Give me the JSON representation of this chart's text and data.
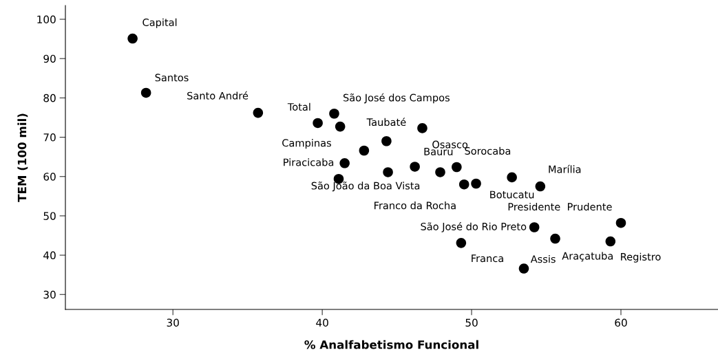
{
  "chart_data": {
    "type": "scatter",
    "xlabel": "% Analfabetismo Funcional",
    "ylabel": "TEM (100 mil)",
    "x": [
      27.3,
      28.2,
      35.7,
      39.7,
      40.8,
      41.2,
      42.8,
      44.3,
      46.7,
      41.5,
      41.1,
      44.4,
      46.2,
      47.9,
      49.0,
      49.5,
      50.3,
      52.7,
      54.6,
      60.0,
      54.2,
      55.6,
      59.3,
      49.3,
      53.5
    ],
    "values": [
      95.1,
      81.3,
      76.2,
      73.6,
      76.0,
      72.7,
      66.6,
      69.0,
      72.3,
      63.4,
      59.4,
      61.1,
      62.5,
      61.1,
      62.4,
      58.0,
      58.2,
      59.8,
      57.5,
      48.2,
      47.1,
      44.2,
      43.5,
      43.1,
      36.6
    ],
    "color": "#000000",
    "marker": "circle",
    "grid": false,
    "xlim": [
      22.8,
      66.5
    ],
    "xticks": [
      30,
      40,
      50,
      60
    ],
    "ylim": [
      26.2,
      103.5
    ],
    "yticks": [
      30,
      40,
      50,
      60,
      70,
      80,
      90,
      100
    ],
    "annotations": [
      {
        "text": "Capital",
        "x": 27.3,
        "y": 95.1
      },
      {
        "text": "Santos",
        "x": 28.2,
        "y": 81.3
      },
      {
        "text": "Santo André",
        "x": 35.7,
        "y": 76.2
      },
      {
        "text": "Total",
        "x": 39.7,
        "y": 73.6
      },
      {
        "text": "São José dos Campos",
        "x": 40.8,
        "y": 76.0
      },
      {
        "text": "Campinas",
        "x": 41.2,
        "y": 72.7
      },
      {
        "text": "Taubaté",
        "x": 44.3,
        "y": 69.0
      },
      {
        "text": "Osasco",
        "x": 46.7,
        "y": 72.3
      },
      {
        "text": "Piracicaba",
        "x": 41.5,
        "y": 63.4
      },
      {
        "text": "São João da Boa Vista",
        "x": 41.1,
        "y": 59.4
      },
      {
        "text": "Bauru",
        "x": 46.2,
        "y": 62.5
      },
      {
        "text": "Sorocaba",
        "x": 49.0,
        "y": 62.4
      },
      {
        "text": "Franco da Rocha",
        "x": 49.5,
        "y": 58.0
      },
      {
        "text": "Botucatu",
        "x": 52.7,
        "y": 59.8
      },
      {
        "text": "Marília",
        "x": 54.6,
        "y": 57.5
      },
      {
        "text": "Presidente  Prudente",
        "x": 60.0,
        "y": 48.2
      },
      {
        "text": "São José do Rio Preto",
        "x": 54.2,
        "y": 47.1
      },
      {
        "text": "Franca",
        "x": 49.3,
        "y": 43.1
      },
      {
        "text": "Araçatuba",
        "x": 55.6,
        "y": 44.2
      },
      {
        "text": "Registro",
        "x": 59.3,
        "y": 43.5
      },
      {
        "text": "Assis",
        "x": 53.5,
        "y": 36.6
      }
    ]
  }
}
